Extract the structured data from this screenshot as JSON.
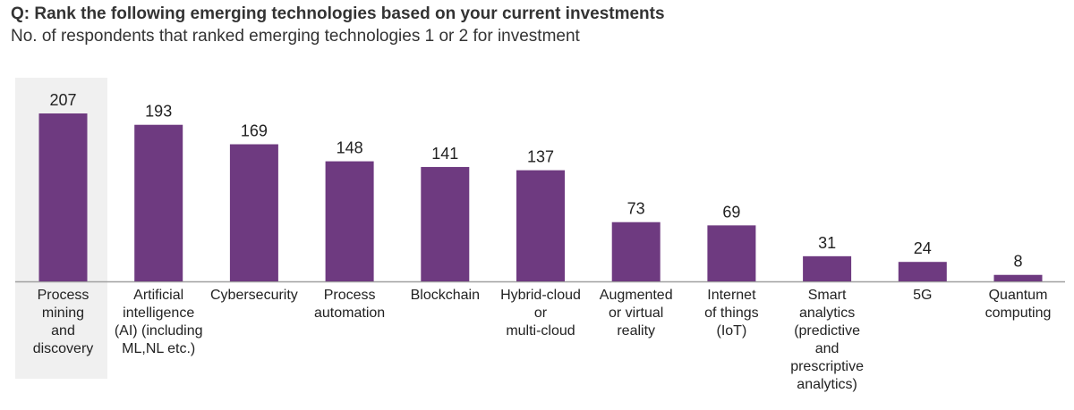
{
  "chart_data": {
    "type": "bar",
    "title": "Q: Rank the following emerging technologies based on your current investments",
    "subtitle": "No. of respondents that ranked emerging technologies 1 or 2 for investment",
    "xlabel": "",
    "ylabel": "",
    "ylim": [
      0,
      207
    ],
    "grid": false,
    "highlighted_category": "Process mining and discovery",
    "categories": [
      "Process\nmining\nand\ndiscovery",
      "Artificial\nintelligence\n(AI) (including\nML,NL etc.)",
      "Cybersecurity",
      "Process\nautomation",
      "Blockchain",
      "Hybrid-cloud\nor\nmulti-cloud",
      "Augmented\nor virtual\nreality",
      "Internet\nof things\n(IoT)",
      "Smart\nanalytics\n(predictive\nand\nprescriptive\nanalytics)",
      "5G",
      "Quantum\ncomputing"
    ],
    "values": [
      207,
      193,
      169,
      148,
      141,
      137,
      73,
      69,
      31,
      24,
      8
    ],
    "colors": {
      "bar": "#6E3A80",
      "highlight": "#F0F0F0",
      "axis": "#A0A0A0"
    }
  }
}
